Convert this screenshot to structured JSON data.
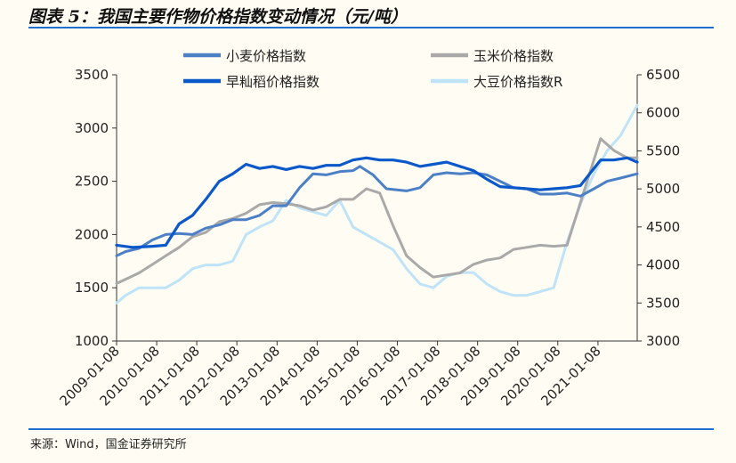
{
  "title": "图表 5：我国主要作物价格指数变动情况（元/吨）",
  "source": "来源：Wind，国金证券研究所",
  "chart_data": {
    "type": "line",
    "x_type": "date",
    "x_ticks": [
      "2009-01-08",
      "2010-01-08",
      "2011-01-08",
      "2012-01-08",
      "2013-01-08",
      "2014-01-08",
      "2015-01-08",
      "2016-01-08",
      "2017-01-08",
      "2018-01-08",
      "2019-01-08",
      "2020-01-08",
      "2021-01-08"
    ],
    "xlim": [
      "2009-01-08",
      "2021-12-31"
    ],
    "ylim_left": [
      1000,
      3500
    ],
    "yticks_left": [
      1000,
      1500,
      2000,
      2500,
      3000,
      3500
    ],
    "ylim_right": [
      3000,
      6500
    ],
    "yticks_right": [
      3000,
      3500,
      4000,
      4500,
      5000,
      5500,
      6000,
      6500
    ],
    "legend_position": "top",
    "series": [
      {
        "name": "小麦价格指数",
        "axis": "left",
        "color": "#4b7fc6",
        "width": 3,
        "points": [
          [
            "2009-01-08",
            1800
          ],
          [
            "2009-04-01",
            1840
          ],
          [
            "2009-08-01",
            1870
          ],
          [
            "2009-12-01",
            1950
          ],
          [
            "2010-04-01",
            2000
          ],
          [
            "2010-08-01",
            2010
          ],
          [
            "2010-12-01",
            2000
          ],
          [
            "2011-04-01",
            2060
          ],
          [
            "2011-08-01",
            2090
          ],
          [
            "2011-12-01",
            2140
          ],
          [
            "2012-04-01",
            2140
          ],
          [
            "2012-08-01",
            2180
          ],
          [
            "2012-12-01",
            2270
          ],
          [
            "2013-04-01",
            2270
          ],
          [
            "2013-08-01",
            2440
          ],
          [
            "2013-12-01",
            2570
          ],
          [
            "2014-04-01",
            2560
          ],
          [
            "2014-08-01",
            2590
          ],
          [
            "2014-12-01",
            2600
          ],
          [
            "2015-02-01",
            2640
          ],
          [
            "2015-06-01",
            2560
          ],
          [
            "2015-10-01",
            2430
          ],
          [
            "2016-04-01",
            2410
          ],
          [
            "2016-08-01",
            2440
          ],
          [
            "2016-12-01",
            2560
          ],
          [
            "2017-04-01",
            2580
          ],
          [
            "2017-08-01",
            2570
          ],
          [
            "2017-12-01",
            2580
          ],
          [
            "2018-04-01",
            2560
          ],
          [
            "2018-08-01",
            2500
          ],
          [
            "2018-12-01",
            2440
          ],
          [
            "2019-04-01",
            2430
          ],
          [
            "2019-08-01",
            2380
          ],
          [
            "2019-12-01",
            2380
          ],
          [
            "2020-04-01",
            2390
          ],
          [
            "2020-08-01",
            2360
          ],
          [
            "2020-12-01",
            2430
          ],
          [
            "2021-04-01",
            2500
          ],
          [
            "2021-08-01",
            2530
          ],
          [
            "2021-12-31",
            2570
          ]
        ]
      },
      {
        "name": "玉米价格指数",
        "axis": "left",
        "color": "#a9a9a9",
        "width": 3,
        "points": [
          [
            "2009-01-08",
            1540
          ],
          [
            "2009-04-01",
            1580
          ],
          [
            "2009-08-01",
            1640
          ],
          [
            "2009-12-01",
            1720
          ],
          [
            "2010-04-01",
            1800
          ],
          [
            "2010-08-01",
            1880
          ],
          [
            "2010-12-01",
            1980
          ],
          [
            "2011-04-01",
            2020
          ],
          [
            "2011-08-01",
            2120
          ],
          [
            "2011-12-01",
            2150
          ],
          [
            "2012-04-01",
            2200
          ],
          [
            "2012-08-01",
            2280
          ],
          [
            "2012-12-01",
            2300
          ],
          [
            "2013-04-01",
            2290
          ],
          [
            "2013-08-01",
            2270
          ],
          [
            "2013-12-01",
            2230
          ],
          [
            "2014-04-01",
            2260
          ],
          [
            "2014-08-01",
            2330
          ],
          [
            "2014-12-01",
            2330
          ],
          [
            "2015-04-01",
            2430
          ],
          [
            "2015-08-01",
            2390
          ],
          [
            "2015-12-01",
            2080
          ],
          [
            "2016-04-01",
            1800
          ],
          [
            "2016-08-01",
            1690
          ],
          [
            "2016-12-01",
            1600
          ],
          [
            "2017-04-01",
            1620
          ],
          [
            "2017-08-01",
            1640
          ],
          [
            "2017-12-01",
            1720
          ],
          [
            "2018-04-01",
            1760
          ],
          [
            "2018-08-01",
            1780
          ],
          [
            "2018-12-01",
            1860
          ],
          [
            "2019-04-01",
            1880
          ],
          [
            "2019-08-01",
            1900
          ],
          [
            "2019-12-01",
            1890
          ],
          [
            "2020-04-01",
            1900
          ],
          [
            "2020-08-01",
            2300
          ],
          [
            "2020-12-01",
            2700
          ],
          [
            "2021-02-01",
            2900
          ],
          [
            "2021-06-01",
            2790
          ],
          [
            "2021-10-01",
            2720
          ],
          [
            "2021-12-31",
            2720
          ]
        ]
      },
      {
        "name": "早籼稻价格指数",
        "axis": "left",
        "color": "#0a58c9",
        "width": 3.2,
        "points": [
          [
            "2009-01-08",
            1900
          ],
          [
            "2009-06-01",
            1880
          ],
          [
            "2009-12-01",
            1890
          ],
          [
            "2010-04-01",
            1900
          ],
          [
            "2010-08-01",
            2100
          ],
          [
            "2010-12-01",
            2180
          ],
          [
            "2011-04-01",
            2330
          ],
          [
            "2011-08-01",
            2500
          ],
          [
            "2011-12-01",
            2570
          ],
          [
            "2012-04-01",
            2660
          ],
          [
            "2012-08-01",
            2620
          ],
          [
            "2012-12-01",
            2640
          ],
          [
            "2013-04-01",
            2610
          ],
          [
            "2013-08-01",
            2640
          ],
          [
            "2013-12-01",
            2620
          ],
          [
            "2014-04-01",
            2650
          ],
          [
            "2014-08-01",
            2650
          ],
          [
            "2014-12-01",
            2700
          ],
          [
            "2015-04-01",
            2720
          ],
          [
            "2015-08-01",
            2700
          ],
          [
            "2015-12-01",
            2700
          ],
          [
            "2016-04-01",
            2680
          ],
          [
            "2016-08-01",
            2640
          ],
          [
            "2016-12-01",
            2660
          ],
          [
            "2017-04-01",
            2680
          ],
          [
            "2017-08-01",
            2640
          ],
          [
            "2017-12-01",
            2600
          ],
          [
            "2018-04-01",
            2520
          ],
          [
            "2018-08-01",
            2450
          ],
          [
            "2018-12-01",
            2440
          ],
          [
            "2019-04-01",
            2430
          ],
          [
            "2019-08-01",
            2420
          ],
          [
            "2019-12-01",
            2430
          ],
          [
            "2020-04-01",
            2440
          ],
          [
            "2020-08-01",
            2460
          ],
          [
            "2020-12-01",
            2620
          ],
          [
            "2021-02-01",
            2700
          ],
          [
            "2021-06-01",
            2700
          ],
          [
            "2021-10-01",
            2720
          ],
          [
            "2021-12-31",
            2680
          ]
        ]
      },
      {
        "name": "大豆价格指数R",
        "axis": "right",
        "color": "#bfe3f7",
        "width": 3,
        "points": [
          [
            "2009-01-08",
            3500
          ],
          [
            "2009-04-01",
            3600
          ],
          [
            "2009-08-01",
            3700
          ],
          [
            "2009-12-01",
            3700
          ],
          [
            "2010-04-01",
            3700
          ],
          [
            "2010-08-01",
            3800
          ],
          [
            "2010-12-01",
            3950
          ],
          [
            "2011-04-01",
            4000
          ],
          [
            "2011-08-01",
            4000
          ],
          [
            "2011-12-01",
            4050
          ],
          [
            "2012-04-01",
            4400
          ],
          [
            "2012-08-01",
            4500
          ],
          [
            "2012-12-01",
            4580
          ],
          [
            "2013-04-01",
            4850
          ],
          [
            "2013-08-01",
            4750
          ],
          [
            "2013-12-01",
            4700
          ],
          [
            "2014-04-01",
            4650
          ],
          [
            "2014-08-01",
            4850
          ],
          [
            "2014-12-01",
            4500
          ],
          [
            "2015-04-01",
            4400
          ],
          [
            "2015-08-01",
            4300
          ],
          [
            "2015-12-01",
            4200
          ],
          [
            "2016-04-01",
            3950
          ],
          [
            "2016-08-01",
            3750
          ],
          [
            "2016-12-01",
            3700
          ],
          [
            "2017-04-01",
            3850
          ],
          [
            "2017-08-01",
            3900
          ],
          [
            "2017-12-01",
            3900
          ],
          [
            "2018-04-01",
            3750
          ],
          [
            "2018-08-01",
            3650
          ],
          [
            "2018-12-01",
            3600
          ],
          [
            "2019-04-01",
            3600
          ],
          [
            "2019-08-01",
            3650
          ],
          [
            "2019-12-01",
            3700
          ],
          [
            "2020-04-01",
            4300
          ],
          [
            "2020-08-01",
            4800
          ],
          [
            "2020-12-01",
            5200
          ],
          [
            "2021-04-01",
            5500
          ],
          [
            "2021-08-01",
            5700
          ],
          [
            "2021-12-31",
            6100
          ]
        ]
      }
    ]
  }
}
